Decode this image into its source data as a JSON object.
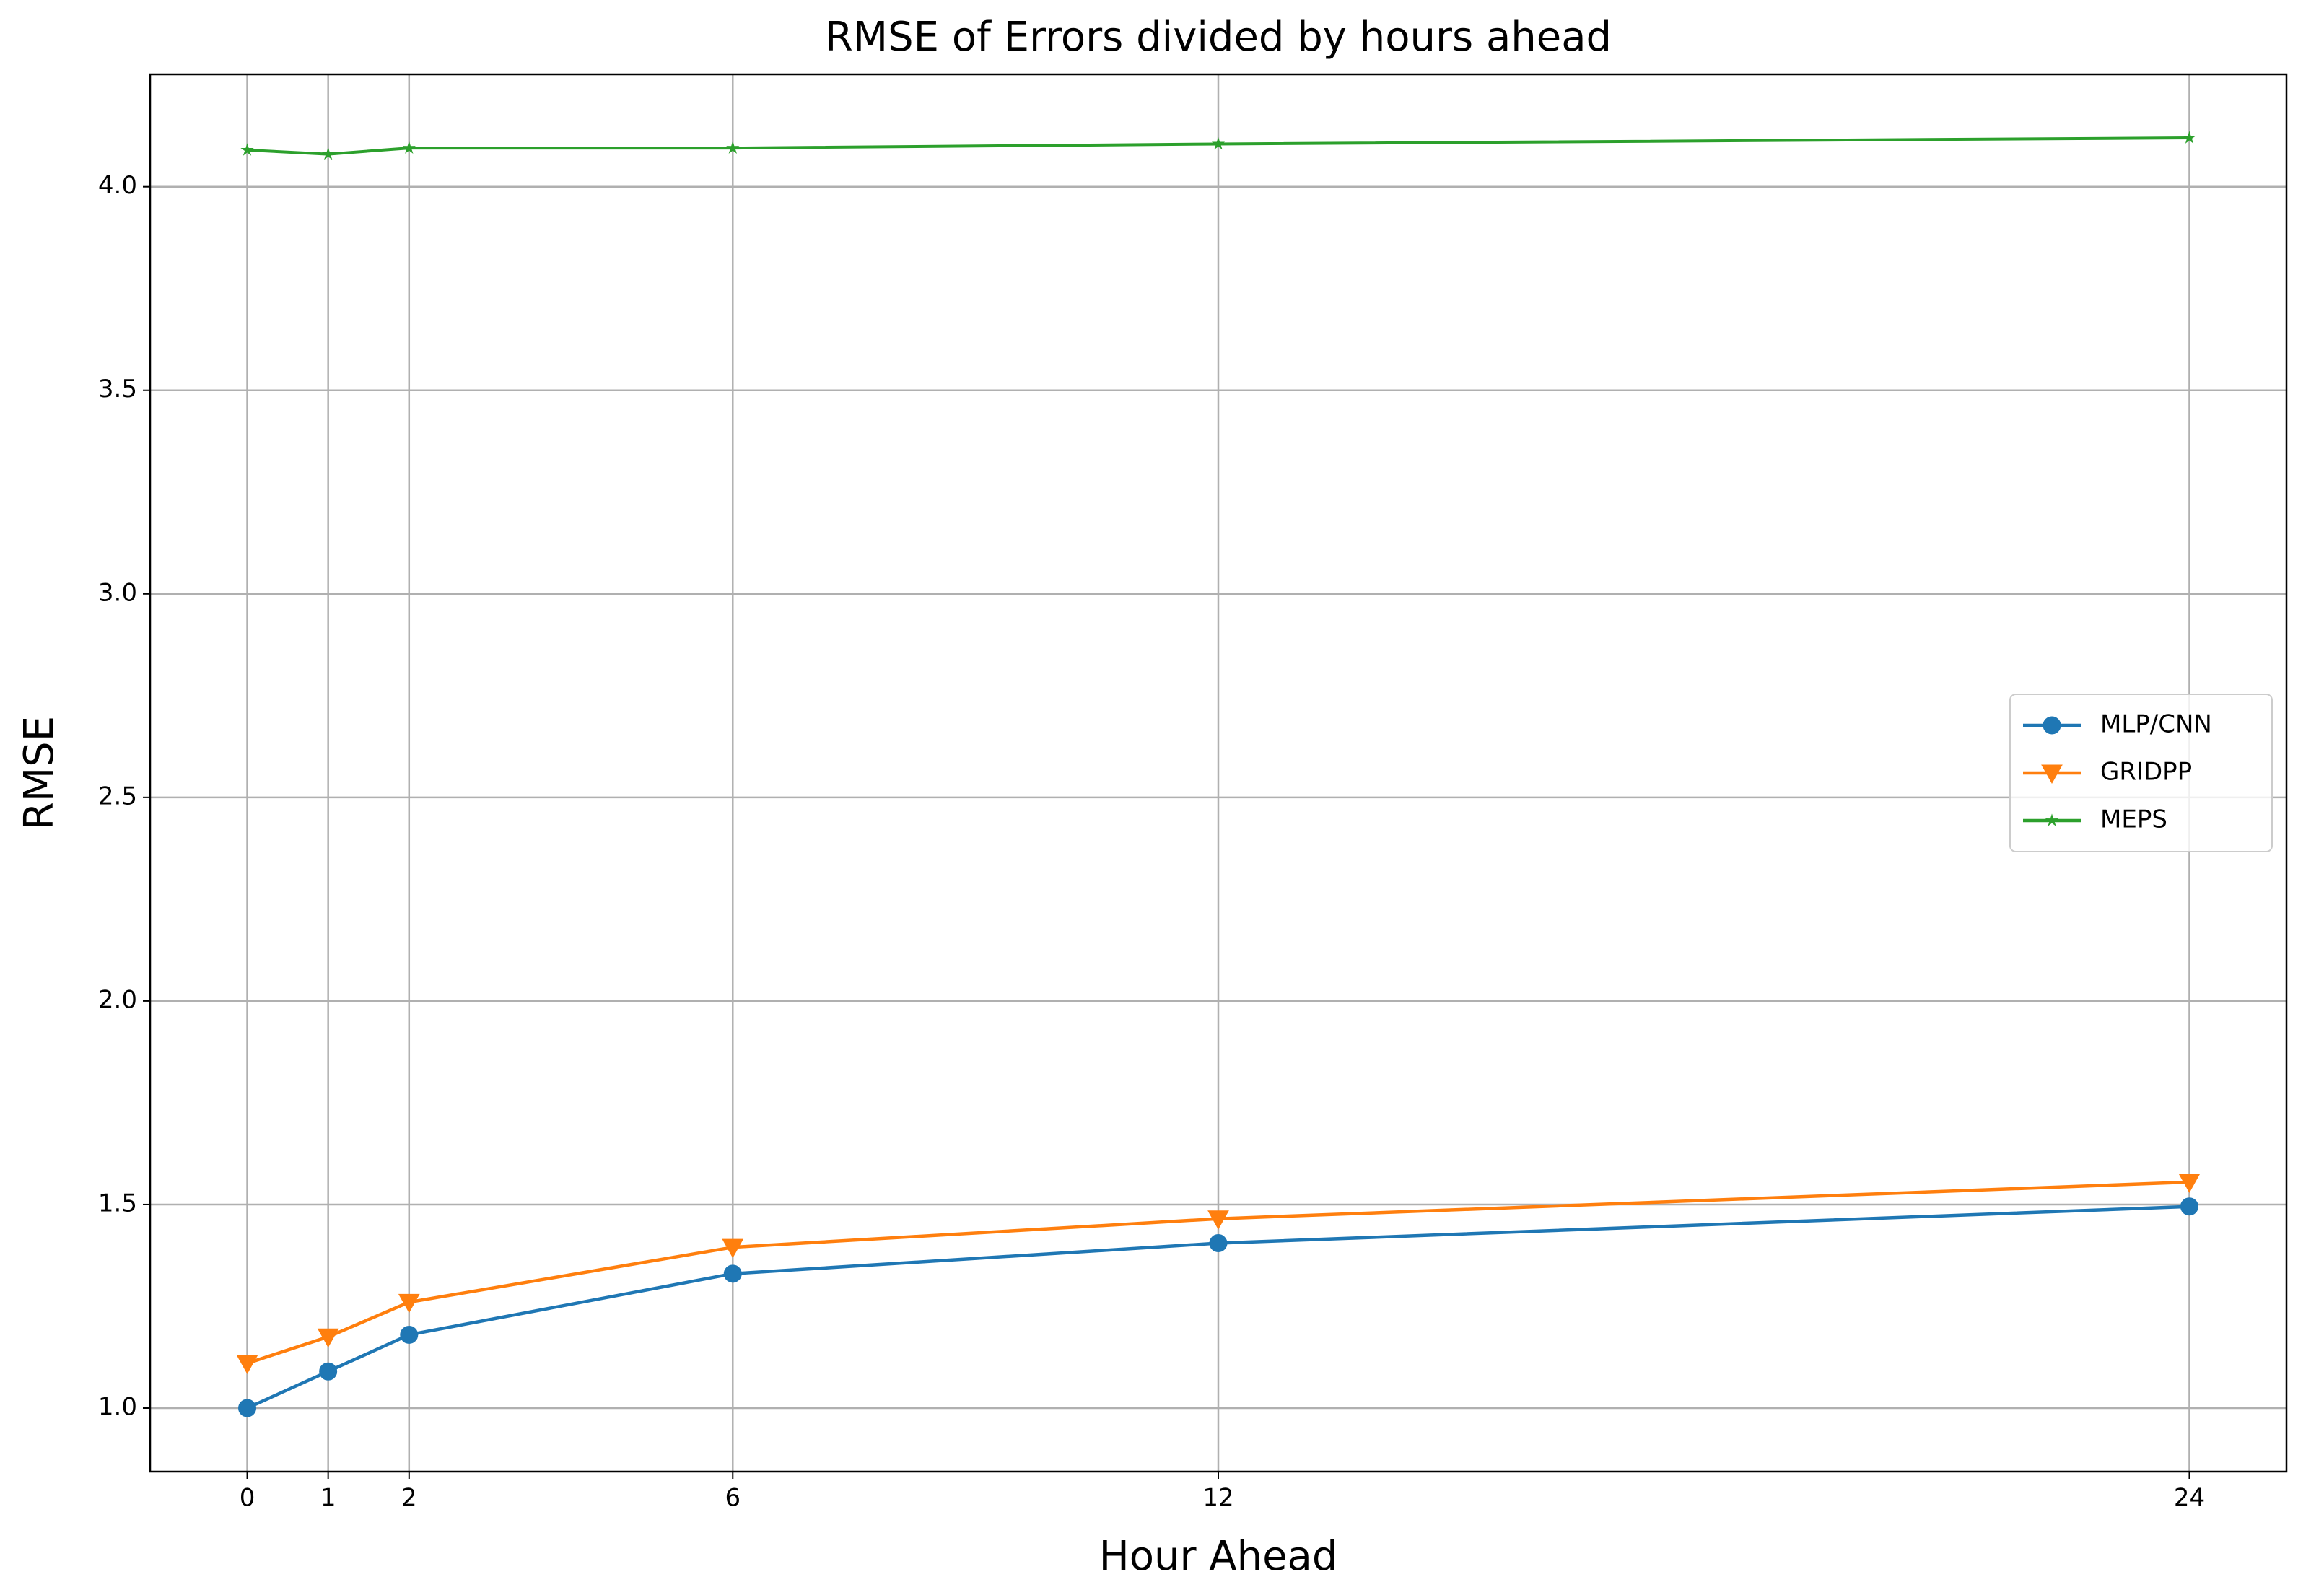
{
  "chart_data": {
    "type": "line",
    "title": "RMSE of Errors divided by hours ahead",
    "x_label": "Hour Ahead",
    "y_label": "RMSE",
    "x": [
      0,
      1,
      2,
      6,
      12,
      24
    ],
    "series": [
      {
        "name": "MLP/CNN",
        "color": "#1f77b4",
        "marker": "circle",
        "values": [
          1.0,
          1.09,
          1.18,
          1.33,
          1.405,
          1.495
        ]
      },
      {
        "name": "GRIDPP",
        "color": "#ff7f0e",
        "marker": "triangle-down",
        "values": [
          1.11,
          1.175,
          1.26,
          1.395,
          1.465,
          1.555
        ]
      },
      {
        "name": "MEPS",
        "color": "#2ca02c",
        "marker": "star",
        "values": [
          4.09,
          4.08,
          4.095,
          4.095,
          4.105,
          4.12
        ]
      }
    ],
    "xlim": [
      -1.2,
      25.2
    ],
    "xticks": [
      0,
      1,
      2,
      6,
      12,
      24
    ],
    "ylim": [
      0.844,
      4.276
    ],
    "yticks": [
      {
        "value": 1,
        "label": "1.0"
      },
      1.5,
      {
        "value": 2,
        "label": "2.0"
      },
      2.5,
      {
        "value": 3,
        "label": "3.0"
      },
      3.5,
      {
        "value": 4,
        "label": "4.0"
      }
    ],
    "grid": true,
    "legend": "center right"
  }
}
